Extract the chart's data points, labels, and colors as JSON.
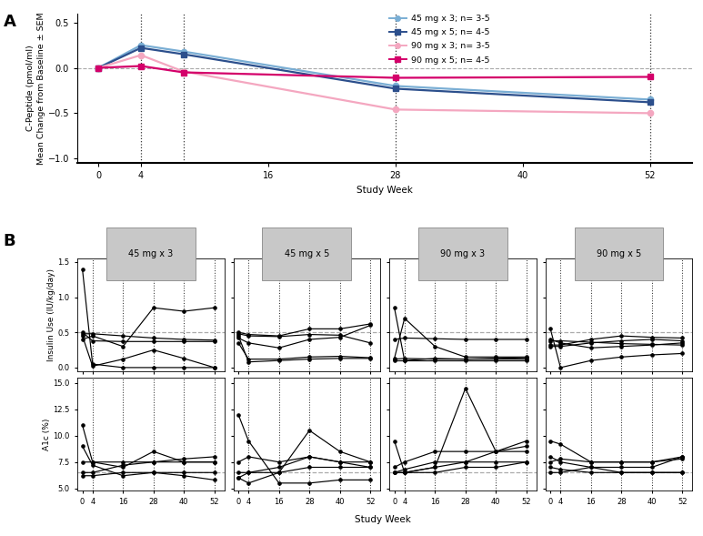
{
  "panel_A": {
    "xlabel": "Study Week",
    "ylabel": "C-Peptide (pmol/ml)\nMean Change from Baseline ± SEM",
    "weeks": [
      0,
      4,
      8,
      28,
      52
    ],
    "ylim": [
      -1.05,
      0.6
    ],
    "yticks": [
      -1.0,
      -0.5,
      0.0,
      0.5
    ],
    "xticks": [
      0,
      4,
      16,
      28,
      40,
      52
    ],
    "hline": 0.0,
    "vlines": [
      4,
      8,
      28,
      52
    ],
    "series": [
      {
        "label": "45 mg x 3; n= 3-5",
        "color": "#7aaed4",
        "linewidth": 1.6,
        "marker": "o",
        "markersize": 4.5,
        "x": [
          0,
          4,
          8,
          28,
          52
        ],
        "y": [
          0.0,
          0.25,
          0.18,
          -0.2,
          -0.35
        ]
      },
      {
        "label": "45 mg x 5; n= 4-5",
        "color": "#2c4f8c",
        "linewidth": 1.6,
        "marker": "s",
        "markersize": 4.5,
        "x": [
          0,
          4,
          8,
          28,
          52
        ],
        "y": [
          0.0,
          0.22,
          0.15,
          -0.23,
          -0.38
        ]
      },
      {
        "label": "90 mg x 3; n= 3-5",
        "color": "#f4a7c0",
        "linewidth": 1.6,
        "marker": "o",
        "markersize": 4.5,
        "x": [
          0,
          4,
          8,
          28,
          52
        ],
        "y": [
          0.0,
          0.14,
          -0.04,
          -0.46,
          -0.5
        ]
      },
      {
        "label": "90 mg x 5; n= 4-5",
        "color": "#d4006a",
        "linewidth": 1.6,
        "marker": "s",
        "markersize": 4.5,
        "x": [
          0,
          4,
          8,
          28,
          52
        ],
        "y": [
          0.0,
          0.02,
          -0.05,
          -0.11,
          -0.1
        ]
      }
    ]
  },
  "panel_B": {
    "groups": [
      "45 mg x 3",
      "45 mg x 5",
      "90 mg x 3",
      "90 mg x 5"
    ],
    "weeks": [
      0,
      4,
      16,
      28,
      40,
      52
    ],
    "xlabel": "Study Week",
    "vlines": [
      4,
      16,
      28,
      40,
      52
    ],
    "insulin": {
      "ylabel": "Insulin Use (IU/kg/day)",
      "ylim": [
        -0.05,
        1.55
      ],
      "yticks": [
        0.0,
        0.5,
        1.0,
        1.5
      ],
      "yticklabels": [
        "0.0",
        "0.5",
        "1.0",
        "1.5"
      ],
      "hline": 0.5,
      "data": {
        "45 mg x 3": [
          [
            1.4,
            0.05,
            0.0,
            0.0,
            0.0,
            0.0
          ],
          [
            0.45,
            0.02,
            0.12,
            0.25,
            0.13,
            0.0
          ],
          [
            0.4,
            0.45,
            0.3,
            0.85,
            0.8,
            0.85
          ],
          [
            0.5,
            0.38,
            0.37,
            0.37,
            0.37,
            0.37
          ],
          [
            0.48,
            0.48,
            0.45,
            0.42,
            0.4,
            0.39
          ]
        ],
        "45 mg x 5": [
          [
            0.45,
            0.08,
            0.1,
            0.12,
            0.13,
            0.13
          ],
          [
            0.42,
            0.35,
            0.28,
            0.4,
            0.43,
            0.6
          ],
          [
            0.5,
            0.47,
            0.45,
            0.55,
            0.55,
            0.62
          ],
          [
            0.35,
            0.12,
            0.12,
            0.15,
            0.16,
            0.14
          ],
          [
            0.48,
            0.45,
            0.44,
            0.47,
            0.46,
            0.35
          ]
        ],
        "90 mg x 3": [
          [
            0.85,
            0.1,
            0.13,
            0.12,
            0.13,
            0.14
          ],
          [
            0.1,
            0.1,
            0.1,
            0.1,
            0.1,
            0.1
          ],
          [
            0.12,
            0.13,
            0.12,
            0.12,
            0.12,
            0.12
          ],
          [
            0.13,
            0.7,
            0.3,
            0.15,
            0.15,
            0.15
          ],
          [
            0.4,
            0.42,
            0.41,
            0.4,
            0.4,
            0.4
          ]
        ],
        "90 mg x 5": [
          [
            0.55,
            0.0,
            0.1,
            0.15,
            0.18,
            0.2
          ],
          [
            0.4,
            0.35,
            0.28,
            0.3,
            0.32,
            0.35
          ],
          [
            0.3,
            0.3,
            0.35,
            0.38,
            0.4,
            0.38
          ],
          [
            0.32,
            0.32,
            0.4,
            0.45,
            0.43,
            0.42
          ],
          [
            0.38,
            0.38,
            0.36,
            0.34,
            0.33,
            0.32
          ]
        ]
      }
    },
    "a1c": {
      "ylabel": "A1c (%)",
      "ylim": [
        4.8,
        15.5
      ],
      "yticks": [
        5.0,
        7.5,
        10.0,
        12.5,
        15.0
      ],
      "yticklabels": [
        "5.0",
        "7.5",
        "10.0",
        "12.5",
        "15.0"
      ],
      "hline": 6.5,
      "data": {
        "45 mg x 3": [
          [
            11.0,
            7.5,
            7.5,
            7.5,
            7.5,
            7.5
          ],
          [
            9.0,
            7.2,
            6.2,
            6.5,
            6.2,
            5.8
          ],
          [
            7.5,
            7.5,
            7.0,
            8.5,
            7.5,
            7.5
          ],
          [
            6.2,
            6.2,
            6.5,
            6.5,
            6.5,
            6.5
          ],
          [
            6.5,
            6.5,
            7.2,
            7.5,
            7.8,
            8.0
          ]
        ],
        "45 mg x 5": [
          [
            12.0,
            9.5,
            5.5,
            5.5,
            5.8,
            5.8
          ],
          [
            7.5,
            8.0,
            7.5,
            8.0,
            7.5,
            7.5
          ],
          [
            6.0,
            5.5,
            6.5,
            10.5,
            8.5,
            7.5
          ],
          [
            6.0,
            6.5,
            7.0,
            8.0,
            7.5,
            7.0
          ],
          [
            6.5,
            6.5,
            6.5,
            7.0,
            7.0,
            7.0
          ]
        ],
        "90 mg x 3": [
          [
            9.5,
            6.5,
            7.0,
            14.5,
            8.5,
            9.5
          ],
          [
            6.5,
            6.5,
            7.0,
            7.5,
            8.5,
            8.5
          ],
          [
            6.5,
            6.5,
            6.5,
            7.0,
            7.0,
            7.5
          ],
          [
            7.0,
            7.5,
            8.5,
            8.5,
            8.5,
            9.0
          ],
          [
            6.5,
            6.8,
            7.5,
            7.5,
            7.5,
            7.5
          ]
        ],
        "90 mg x 5": [
          [
            9.5,
            9.2,
            7.5,
            7.5,
            7.5,
            8.0
          ],
          [
            8.0,
            7.5,
            7.0,
            6.5,
            6.5,
            6.5
          ],
          [
            7.0,
            6.8,
            6.5,
            6.5,
            6.5,
            6.5
          ],
          [
            6.5,
            6.5,
            7.0,
            7.0,
            7.0,
            8.0
          ],
          [
            7.5,
            7.8,
            7.5,
            7.5,
            7.5,
            7.8
          ]
        ]
      }
    }
  },
  "bg": "#ffffff",
  "vline_color": "#333333",
  "hline_color": "#aaaaaa",
  "header_fc": "#c8c8c8",
  "header_ec": "#888888"
}
